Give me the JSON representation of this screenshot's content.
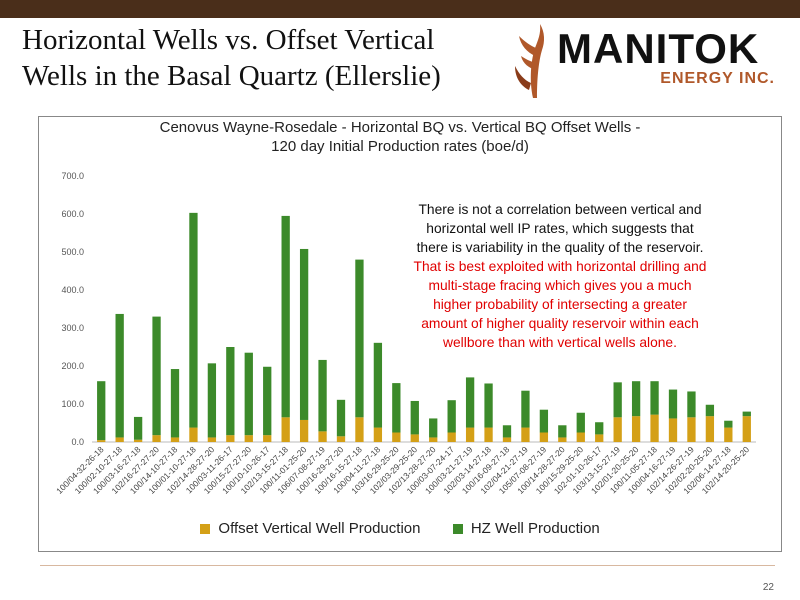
{
  "slide": {
    "title_line1": "Horizontal Wells vs. Offset Vertical",
    "title_line2": "Wells in the Basal Quartz (Ellerslie)",
    "page_number": "22"
  },
  "logo": {
    "name": "MANITOK",
    "sub": "ENERGY INC.",
    "colors": {
      "text": "#111111",
      "accent": "#b0582a"
    }
  },
  "annotation": {
    "black_lines": [
      "There is not a correlation between vertical and",
      "horizontal well IP rates, which suggests that",
      "there is variability in the quality of the reservoir."
    ],
    "red_lines": [
      "That is best exploited with horizontal drilling and",
      "multi-stage fracing which gives you a much",
      "higher probability of intersecting a greater",
      "amount of higher quality reservoir within each",
      "wellbore than with vertical wells alone."
    ],
    "colors": {
      "black": "#111111",
      "red": "#e00000"
    }
  },
  "chart_data": {
    "type": "bar",
    "stacked": true,
    "title_lines": [
      "Cenovus Wayne-Rosedale - Horizontal BQ vs. Vertical BQ Offset Wells -",
      "120 day Initial Production rates (boe/d)"
    ],
    "ylim": [
      0,
      700
    ],
    "yticks": [
      "0.0",
      "100.0",
      "200.0",
      "300.0",
      "400.0",
      "500.0",
      "600.0",
      "700.0"
    ],
    "grid": false,
    "legend_position": "bottom",
    "categories": [
      "100/04-32-26-18",
      "100/02-10-27-18",
      "100/03-16-27-18",
      "102/16-27-27-20",
      "100/14-10-27-18",
      "100/01-10-27-18",
      "102/14-28-27-20",
      "100/03-11-26-17",
      "100/15-27-27-20",
      "100/10-10-26-17",
      "102/13-15-27-18",
      "100/11-01-25-20",
      "106/07-08-27-19",
      "100/16-29-27-20",
      "100/16-15-27-18",
      "100/04-11-27-18",
      "103/16-29-25-20",
      "102/03-29-25-20",
      "102/13-28-27-20",
      "100/03-07-24-17",
      "100/03-21-27-19",
      "102/03-14-27-18",
      "100/16-09-27-18",
      "102/04-21-27-19",
      "105/07-08-27-19",
      "100/14-28-27-20",
      "100/15-29-25-20",
      "102-01-10-26-17",
      "103/13-15-27-19",
      "102/01-20-25-20",
      "100/11-05-27-18",
      "100/04-16-27-19",
      "102/14-26-27-19",
      "102/02-20-25-20",
      "102/06-14-27-18",
      "102/14-20-25-20"
    ],
    "series": [
      {
        "name": "Offset Vertical Well Production",
        "color": "#d4a017",
        "values": [
          5,
          12,
          6,
          18,
          12,
          38,
          12,
          18,
          18,
          18,
          65,
          58,
          28,
          15,
          65,
          38,
          25,
          20,
          12,
          25,
          38,
          38,
          12,
          38,
          25,
          12,
          25,
          20,
          65,
          68,
          72,
          62,
          65,
          68,
          38,
          68
        ]
      },
      {
        "name": "HZ Well Production",
        "color": "#3c8a2a",
        "values": [
          155,
          325,
          60,
          312,
          180,
          565,
          195,
          232,
          217,
          180,
          530,
          450,
          188,
          96,
          415,
          223,
          130,
          88,
          50,
          85,
          132,
          116,
          32,
          97,
          60,
          32,
          52,
          32,
          92,
          92,
          88,
          76,
          68,
          30,
          18,
          12
        ]
      }
    ]
  }
}
